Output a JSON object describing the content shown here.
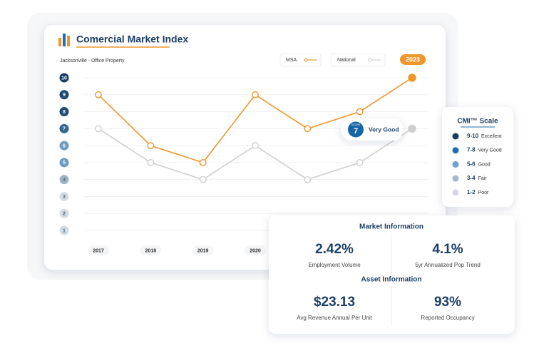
{
  "chart_data": {
    "type": "line",
    "title": "Comercial Market Index",
    "subtitle": "Jacksonville - Office Property",
    "selected_category": "2023",
    "categories": [
      "2017",
      "2018",
      "2019",
      "2020",
      null,
      null,
      null
    ],
    "series": [
      {
        "name": "MSA",
        "color": "#f0962a",
        "values": [
          9,
          6,
          5,
          9,
          7,
          8,
          10
        ]
      },
      {
        "name": "National",
        "color": "#cfcfcf",
        "values": [
          7,
          5,
          4,
          6,
          4,
          5,
          7
        ]
      }
    ],
    "ylim": [
      1,
      10
    ],
    "yticks": [
      1,
      2,
      3,
      4,
      5,
      6,
      7,
      8,
      9,
      10
    ],
    "ytick_colors": [
      "#d3dbe3",
      "#d3dbe3",
      "#d3dbe3",
      "#9fb3c6",
      "#6f9cc4",
      "#6f9cc4",
      "#2f6796",
      "#1d4a75",
      "#1d4a75",
      "#173d63"
    ],
    "grid": true,
    "tooltip": {
      "label": "SCORE",
      "value": "7",
      "text": "Very Good"
    }
  },
  "scale": {
    "title": "CMI™ Scale",
    "items": [
      {
        "range": "9-10",
        "label": "Excellent",
        "color": "#173d63"
      },
      {
        "range": "7-8",
        "label": "Very Good",
        "color": "#1c6fb5"
      },
      {
        "range": "5-6",
        "label": "Good",
        "color": "#6fa2cf"
      },
      {
        "range": "3-4",
        "label": "Fair",
        "color": "#a7b8cc"
      },
      {
        "range": "1-2",
        "label": "Poor",
        "color": "#d9d6e6"
      }
    ]
  },
  "info": [
    {
      "title": "Market Information",
      "items": [
        {
          "value": "2.42%",
          "label": "Employment Volume"
        },
        {
          "value": "4.1%",
          "label": "5yr Annualized Pop Trend"
        }
      ]
    },
    {
      "title": "Asset Information",
      "items": [
        {
          "value": "$23.13",
          "label": "Avg Revenue Annual Per Unit"
        },
        {
          "value": "93%",
          "label": "Reported Occupancy"
        }
      ]
    }
  ]
}
